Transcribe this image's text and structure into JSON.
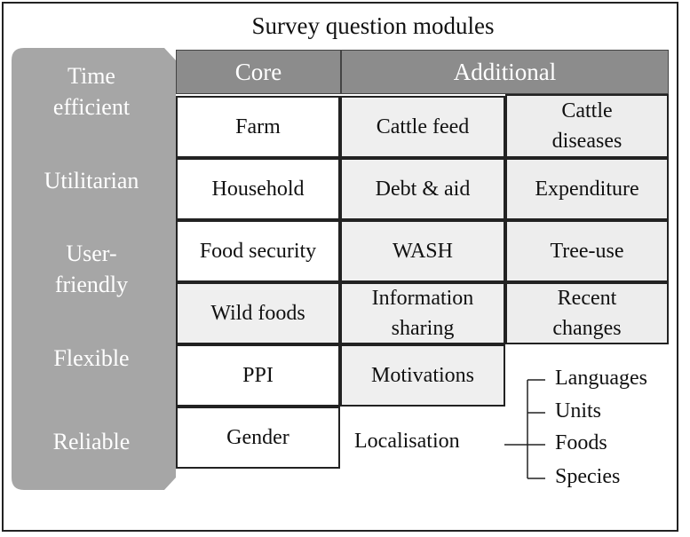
{
  "title": "Survey question modules",
  "sidebar": {
    "labels": [
      "Time efficient",
      "Utilitarian",
      "User- friendly",
      "Flexible",
      "Reliable"
    ],
    "label_lines": [
      [
        "Time",
        "efficient"
      ],
      [
        "Utilitarian"
      ],
      [
        "User-",
        "friendly"
      ],
      [
        "Flexible"
      ],
      [
        "Reliable"
      ]
    ]
  },
  "headers": {
    "core": "Core",
    "additional": "Additional"
  },
  "core_modules": [
    "Farm",
    "Household",
    "Food security",
    "Wild foods",
    "PPI",
    "Gender"
  ],
  "additional_col1": [
    "Cattle feed",
    "Debt & aid",
    "WASH",
    "Information sharing",
    "Motivations"
  ],
  "additional_col2": [
    "Cattle diseases",
    "Expenditure",
    "Tree-use",
    "Recent changes"
  ],
  "additional_col1_lines": [
    [
      "Cattle feed"
    ],
    [
      "Debt & aid"
    ],
    [
      "WASH"
    ],
    [
      "Information",
      "sharing"
    ],
    [
      "Motivations"
    ]
  ],
  "additional_col2_lines": [
    [
      "Cattle",
      "diseases"
    ],
    [
      "Expenditure"
    ],
    [
      "Tree-use"
    ],
    [
      "Recent",
      "changes"
    ]
  ],
  "localisation": {
    "label": "Localisation",
    "items": [
      "Languages",
      "Units",
      "Foods",
      "Species"
    ]
  },
  "colors": {
    "sidebar_fill": "#a6a6a6",
    "header_fill": "#8c8c8c",
    "grey_cell": "#efefef",
    "border": "#222222"
  }
}
